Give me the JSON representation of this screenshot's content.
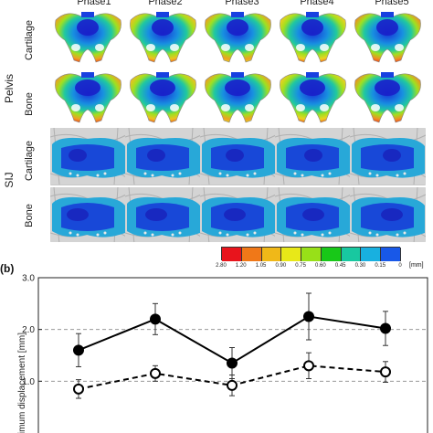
{
  "figure": {
    "phases": [
      "Phase1",
      "Phase2",
      "Phase3",
      "Phase4",
      "Phase5"
    ],
    "groups": [
      {
        "label": "Pelvis",
        "rows": [
          "Cartilage",
          "Bone"
        ]
      },
      {
        "label": "SIJ",
        "rows": [
          "Cartilage",
          "Bone"
        ]
      }
    ],
    "colorbar": {
      "ticks": [
        "2.80",
        "1.20",
        "1.05",
        "0.90",
        "0.75",
        "0.60",
        "0.45",
        "0.30",
        "0.15",
        "0"
      ],
      "unit": "[mm]",
      "colors": [
        "#e8141c",
        "#f07818",
        "#f0b818",
        "#e8e818",
        "#98e018",
        "#18c818",
        "#18c8a0",
        "#18b0e0",
        "#1858e8",
        "#1818c8"
      ]
    },
    "panel_b_label": "(b)"
  },
  "chart_data": {
    "type": "line",
    "categories": [
      "Phase1",
      "Phase2",
      "Phase3",
      "Phase4",
      "Phase5"
    ],
    "ylabel": "Maximum displacement [mm]",
    "ylim": [
      0,
      3.0
    ],
    "yticks": [
      "1.0",
      "2.0",
      "3.0"
    ],
    "grid": "dashed at 1.0 and 2.0",
    "series": [
      {
        "style": "solid, filled circles",
        "color": "#000000",
        "values": [
          1.6,
          2.2,
          1.35,
          2.25,
          2.02
        ],
        "errors": [
          0.32,
          0.3,
          0.3,
          0.45,
          0.33
        ]
      },
      {
        "style": "dashed, open circles",
        "color": "#000000",
        "values": [
          0.85,
          1.15,
          0.92,
          1.3,
          1.18
        ],
        "errors": [
          0.18,
          0.15,
          0.2,
          0.25,
          0.2
        ]
      }
    ]
  }
}
